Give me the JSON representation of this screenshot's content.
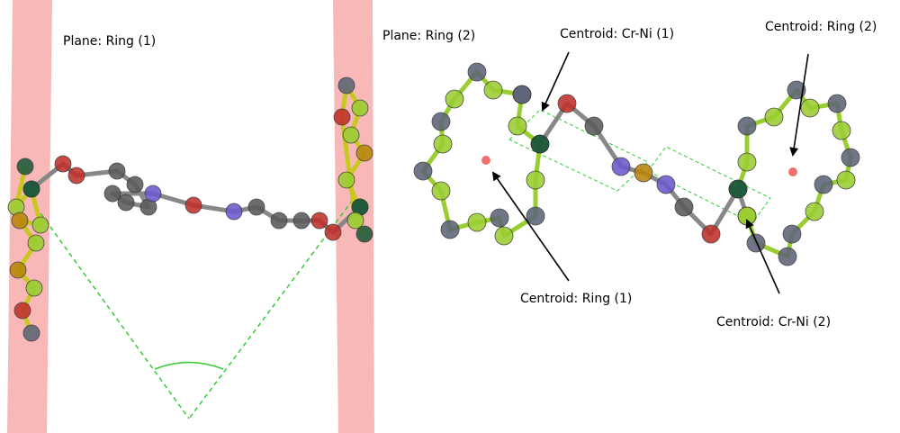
{
  "labels": {
    "plane_ring_1": "Plane: Ring (1)",
    "plane_ring_2": "Plane: Ring (2)",
    "centroid_crni_1": "Centroid: Cr-Ni (1)",
    "centroid_ring_2": "Centroid: Ring (2)",
    "centroid_ring_1": "Centroid: Ring (1)",
    "centroid_crni_2": "Centroid: Cr-Ni (2)"
  }
}
